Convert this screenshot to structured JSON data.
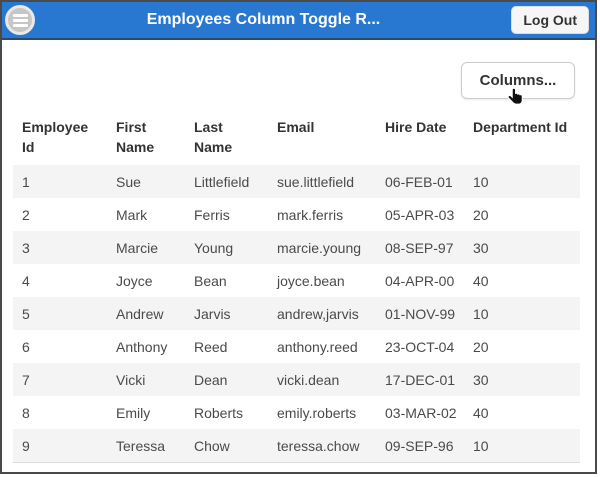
{
  "header": {
    "title": "Employees Column Toggle R...",
    "logout_label": "Log Out",
    "menu_icon": "hamburger-menu-icon",
    "bg_color": "#2878d2"
  },
  "toolbar": {
    "columns_button_label": "Columns...",
    "cursor_icon": "pointer-hand-cursor-icon"
  },
  "table": {
    "columns": [
      "Employee Id",
      "First Name",
      "Last Name",
      "Email",
      "Hire Date",
      "Department Id"
    ],
    "rows": [
      [
        "1",
        "Sue",
        "Littlefield",
        "sue.littlefield",
        "06-FEB-01",
        "10"
      ],
      [
        "2",
        "Mark",
        "Ferris",
        "mark.ferris",
        "05-APR-03",
        "20"
      ],
      [
        "3",
        "Marcie",
        "Young",
        "marcie.young",
        "08-SEP-97",
        "30"
      ],
      [
        "4",
        "Joyce",
        "Bean",
        "joyce.bean",
        "04-APR-00",
        "40"
      ],
      [
        "5",
        "Andrew",
        "Jarvis",
        "andrew,jarvis",
        "01-NOV-99",
        "10"
      ],
      [
        "6",
        "Anthony",
        "Reed",
        "anthony.reed",
        "23-OCT-04",
        "20"
      ],
      [
        "7",
        "Vicki",
        "Dean",
        "vicki.dean",
        "17-DEC-01",
        "30"
      ],
      [
        "8",
        "Emily",
        "Roberts",
        "emily.roberts",
        "03-MAR-02",
        "40"
      ],
      [
        "9",
        "Teressa",
        "Chow",
        "teressa.chow",
        "09-SEP-96",
        "10"
      ]
    ],
    "stripe_color": "#f4f4f5"
  }
}
